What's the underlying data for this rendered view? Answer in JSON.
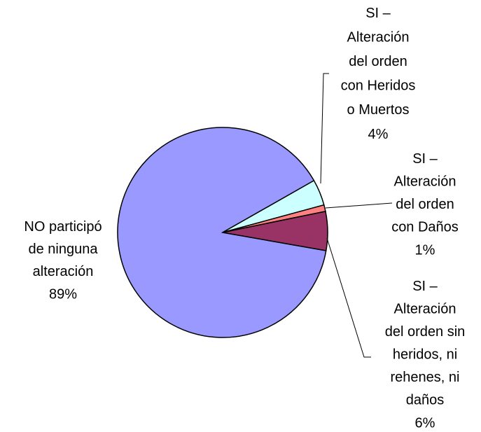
{
  "chart_data": {
    "type": "pie",
    "categories": [
      "NO participó\nde ninguna\nalteración",
      "SI –\nAlteración\ndel orden\ncon Heridos\no Muertos",
      "SI –\nAlteración\ndel orden\ncon Daños",
      "SI –\nAlteración\ndel orden sin\nheridos, ni\nrehenes, ni\ndaños"
    ],
    "values": [
      89,
      4,
      1,
      6
    ],
    "value_labels": [
      "89%",
      "4%",
      "1%",
      "6%"
    ],
    "colors": [
      "#9999ff",
      "#ccffff",
      "#ff8080",
      "#993366"
    ]
  }
}
